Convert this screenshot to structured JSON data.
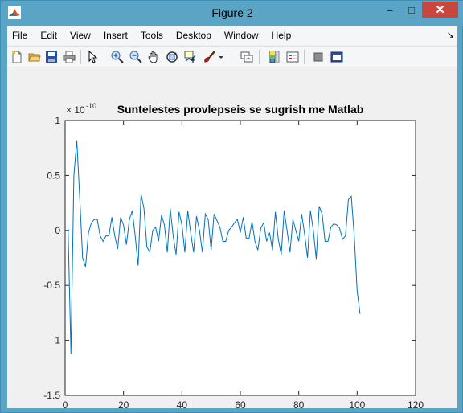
{
  "window": {
    "title": "Figure 2",
    "title_color": "#5aa4c6",
    "close_color": "#c7463d"
  },
  "menu": {
    "items": [
      "File",
      "Edit",
      "View",
      "Insert",
      "Tools",
      "Desktop",
      "Window",
      "Help"
    ]
  },
  "toolbar": {
    "icons": [
      "new-figure-icon",
      "open-file-icon",
      "save-icon",
      "print-icon",
      "pointer-icon",
      "zoom-in-icon",
      "zoom-out-icon",
      "pan-icon",
      "rotate-3d-icon",
      "data-cursor-icon",
      "brush-icon",
      "link-plot-icon",
      "colorbar-icon",
      "legend-icon",
      "hide-plot-tools-icon",
      "show-plot-tools-icon"
    ]
  },
  "chart_data": {
    "type": "line",
    "title": "Suntelestes provlepseis se sugrish me Matlab",
    "exponent_label": "× 10",
    "exponent_power": "-10",
    "xlim": [
      0,
      120
    ],
    "ylim": [
      -1.5,
      1
    ],
    "x_ticks": [
      "0",
      "20",
      "40",
      "60",
      "80",
      "100",
      "120"
    ],
    "y_ticks": [
      "-1.5",
      "-1",
      "-0.5",
      "0",
      "0.5",
      "1"
    ],
    "x_tick_values": [
      0,
      20,
      40,
      60,
      80,
      100,
      120
    ],
    "y_tick_values": [
      -1.5,
      -1,
      -0.5,
      0,
      0.5,
      1
    ],
    "grid": false,
    "line_color": "#0072bd",
    "x": [
      1,
      2,
      3,
      4,
      5,
      6,
      7,
      8,
      9,
      10,
      11,
      12,
      13,
      14,
      15,
      16,
      17,
      18,
      19,
      20,
      21,
      22,
      23,
      24,
      25,
      26,
      27,
      28,
      29,
      30,
      31,
      32,
      33,
      34,
      35,
      36,
      37,
      38,
      39,
      40,
      41,
      42,
      43,
      44,
      45,
      46,
      47,
      48,
      49,
      50,
      51,
      52,
      53,
      54,
      55,
      56,
      57,
      58,
      59,
      60,
      61,
      62,
      63,
      64,
      65,
      66,
      67,
      68,
      69,
      70,
      71,
      72,
      73,
      74,
      75,
      76,
      77,
      78,
      79,
      80,
      81,
      82,
      83,
      84,
      85,
      86,
      87,
      88,
      89,
      90,
      91,
      92,
      93,
      94,
      95,
      96,
      97,
      98,
      99,
      100,
      101
    ],
    "y": [
      0.02,
      -1.12,
      0.5,
      0.82,
      0.3,
      -0.25,
      -0.33,
      -0.02,
      0.07,
      0.1,
      0.1,
      -0.05,
      -0.1,
      -0.05,
      -0.05,
      0.12,
      -0.05,
      -0.17,
      0.12,
      0.05,
      -0.13,
      0.1,
      0.18,
      -0.05,
      -0.32,
      0.33,
      0.2,
      -0.15,
      -0.2,
      0.0,
      0.03,
      -0.1,
      0.14,
      0.05,
      -0.2,
      0.2,
      -0.05,
      -0.22,
      0.17,
      0.05,
      -0.2,
      0.18,
      -0.02,
      -0.2,
      0.13,
      0.0,
      -0.2,
      0.15,
      0.1,
      -0.18,
      0.15,
      0.09,
      0.03,
      -0.1,
      -0.1,
      0.0,
      0.03,
      0.07,
      0.1,
      -0.02,
      0.12,
      -0.07,
      -0.07,
      0.08,
      -0.1,
      -0.18,
      0.02,
      0.07,
      -0.1,
      -0.02,
      -0.18,
      0.17,
      -0.08,
      -0.22,
      0.18,
      0.0,
      -0.2,
      0.1,
      0.0,
      -0.1,
      0.15,
      -0.03,
      -0.25,
      0.18,
      0.0,
      -0.26,
      0.22,
      0.15,
      -0.1,
      -0.1,
      0.03,
      0.06,
      0.05,
      0.02,
      -0.08,
      -0.05,
      0.28,
      0.31,
      -0.05,
      -0.55,
      -0.76
    ]
  }
}
